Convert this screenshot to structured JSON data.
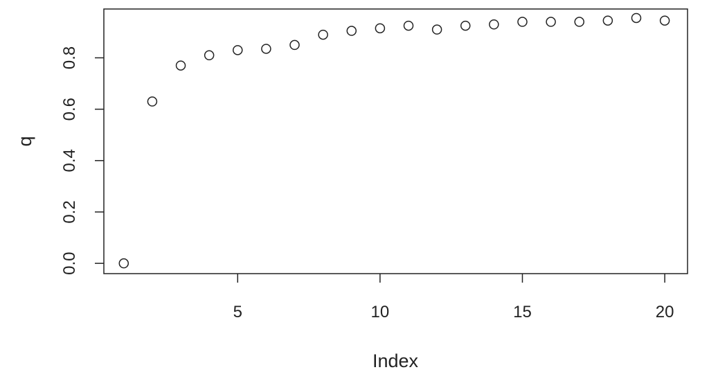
{
  "chart_data": {
    "type": "scatter",
    "title": "",
    "xlabel": "Index",
    "ylabel": "q",
    "xlim": [
      0.3,
      20.8
    ],
    "ylim": [
      -0.04,
      0.99
    ],
    "x_ticks": [
      5,
      10,
      15,
      20
    ],
    "x_tick_labels": [
      "5",
      "10",
      "15",
      "20"
    ],
    "y_ticks": [
      0.0,
      0.2,
      0.4,
      0.6,
      0.8
    ],
    "y_tick_labels": [
      "0.0",
      "0.2",
      "0.4",
      "0.6",
      "0.8"
    ],
    "grid": false,
    "legend": "none",
    "marker": "open-circle",
    "point_color": "#222222",
    "series": [
      {
        "x": [
          1,
          2,
          3,
          4,
          5,
          6,
          7,
          8,
          9,
          10,
          11,
          12,
          13,
          14,
          15,
          16,
          17,
          18,
          19,
          20
        ],
        "values": [
          0.0,
          0.63,
          0.77,
          0.81,
          0.83,
          0.835,
          0.85,
          0.89,
          0.905,
          0.915,
          0.925,
          0.91,
          0.925,
          0.93,
          0.94,
          0.94,
          0.94,
          0.945,
          0.955,
          0.945
        ]
      }
    ]
  }
}
